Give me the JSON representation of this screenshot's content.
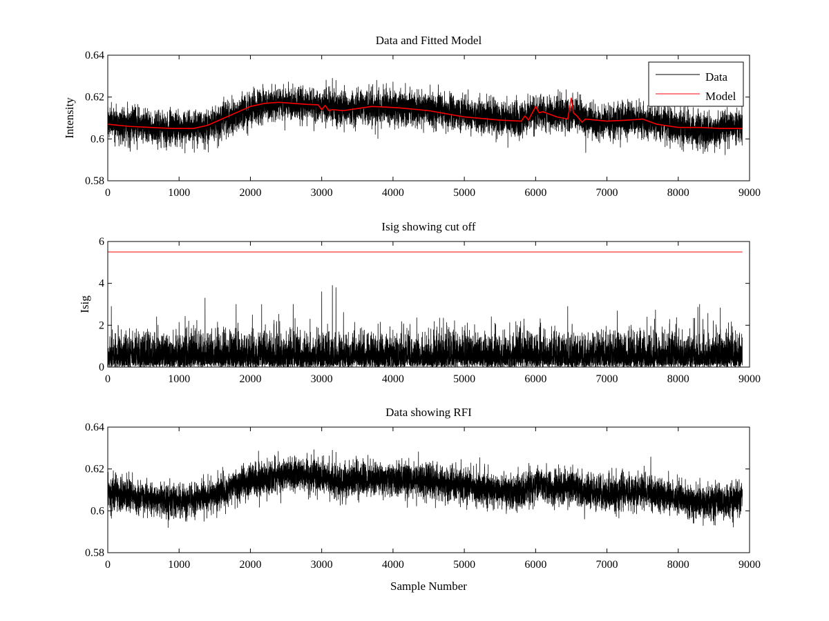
{
  "figure": {
    "background": "#ffffff",
    "xlabel": "Sample Number"
  },
  "chart_data": [
    {
      "type": "line",
      "title": "Data and Fitted Model",
      "xlabel": "",
      "ylabel": "Intensity",
      "xlim": [
        0,
        9000
      ],
      "ylim": [
        0.58,
        0.64
      ],
      "xticks": [
        0,
        1000,
        2000,
        3000,
        4000,
        5000,
        6000,
        7000,
        8000,
        9000
      ],
      "yticks": [
        0.58,
        0.6,
        0.62,
        0.64
      ],
      "ytick_labels": [
        "0.58",
        "0.6",
        "0.62",
        "0.64"
      ],
      "legend": {
        "position": "top-right",
        "entries": [
          "Data",
          "Model"
        ]
      },
      "series": [
        {
          "name": "Data",
          "color": "#000000",
          "kind": "noisy",
          "n_samples": 8900,
          "noise_sd": 0.004,
          "baseline": {
            "x": [
              0,
              200,
              500,
              800,
              1100,
              1300,
              1600,
              1900,
              2200,
              2400,
              2700,
              3000,
              3300,
              3700,
              4000,
              4500,
              5000,
              5500,
              5800,
              6000,
              6200,
              6500,
              6700,
              7000,
              7300,
              7500,
              7800,
              8100,
              8400,
              8700,
              8900
            ],
            "y": [
              0.608,
              0.607,
              0.606,
              0.605,
              0.605,
              0.606,
              0.609,
              0.613,
              0.616,
              0.617,
              0.617,
              0.616,
              0.614,
              0.615,
              0.615,
              0.614,
              0.612,
              0.61,
              0.609,
              0.613,
              0.611,
              0.612,
              0.609,
              0.608,
              0.609,
              0.609,
              0.607,
              0.605,
              0.604,
              0.605,
              0.606
            ]
          },
          "spikes": [
            {
              "x": 3150,
              "y": 0.629
            },
            {
              "x": 3200,
              "y": 0.628
            },
            {
              "x": 2350,
              "y": 0.626
            },
            {
              "x": 6520,
              "y": 0.622
            },
            {
              "x": 1350,
              "y": 0.595
            },
            {
              "x": 8350,
              "y": 0.593
            }
          ]
        },
        {
          "name": "Model",
          "color": "#ff0000",
          "kind": "line",
          "x": [
            0,
            300,
            600,
            900,
            1200,
            1400,
            1600,
            1800,
            2000,
            2200,
            2400,
            2600,
            2800,
            2950,
            3000,
            3050,
            3100,
            3150,
            3300,
            3500,
            3700,
            3900,
            4100,
            4500,
            5000,
            5500,
            5800,
            5850,
            5900,
            6000,
            6050,
            6100,
            6300,
            6450,
            6500,
            6530,
            6580,
            6650,
            6700,
            7000,
            7300,
            7500,
            7700,
            8000,
            8300,
            8600,
            8900
          ],
          "y": [
            0.607,
            0.606,
            0.6055,
            0.605,
            0.605,
            0.6065,
            0.6095,
            0.6125,
            0.6155,
            0.617,
            0.6175,
            0.617,
            0.6165,
            0.6163,
            0.614,
            0.616,
            0.6135,
            0.614,
            0.6135,
            0.6145,
            0.6155,
            0.6152,
            0.6148,
            0.6135,
            0.6105,
            0.609,
            0.6085,
            0.611,
            0.609,
            0.6155,
            0.6125,
            0.613,
            0.6105,
            0.6095,
            0.6195,
            0.6125,
            0.611,
            0.608,
            0.6095,
            0.6085,
            0.609,
            0.6095,
            0.607,
            0.6055,
            0.6055,
            0.605,
            0.605
          ]
        }
      ]
    },
    {
      "type": "line",
      "title": "Isig showing cut off",
      "xlabel": "",
      "ylabel": "Isig",
      "xlim": [
        0,
        9000
      ],
      "ylim": [
        0,
        6
      ],
      "xticks": [
        0,
        1000,
        2000,
        3000,
        4000,
        5000,
        6000,
        7000,
        8000,
        9000
      ],
      "yticks": [
        0,
        2,
        4,
        6
      ],
      "ytick_labels": [
        "0",
        "2",
        "4",
        "6"
      ],
      "series": [
        {
          "name": "Isig",
          "color": "#000000",
          "kind": "abs-noise",
          "n_samples": 8900,
          "noise_sd": 0.75,
          "spikes": [
            {
              "x": 3150,
              "y": 3.9
            },
            {
              "x": 3000,
              "y": 3.6
            },
            {
              "x": 3200,
              "y": 3.8
            },
            {
              "x": 2600,
              "y": 3.0
            },
            {
              "x": 6450,
              "y": 2.9
            },
            {
              "x": 8300,
              "y": 3.0
            },
            {
              "x": 1800,
              "y": 3.0
            },
            {
              "x": 50,
              "y": 2.9
            }
          ]
        },
        {
          "name": "Cut off",
          "color": "#ff0000",
          "kind": "line",
          "x": [
            0,
            8900
          ],
          "y": [
            5.5,
            5.5
          ]
        }
      ]
    },
    {
      "type": "line",
      "title": "Data showing RFI",
      "xlabel": "Sample Number",
      "ylabel": "",
      "xlim": [
        0,
        9000
      ],
      "ylim": [
        0.58,
        0.64
      ],
      "xticks": [
        0,
        1000,
        2000,
        3000,
        4000,
        5000,
        6000,
        7000,
        8000,
        9000
      ],
      "yticks": [
        0.58,
        0.6,
        0.62,
        0.64
      ],
      "ytick_labels": [
        "0.58",
        "0.6",
        "0.62",
        "0.64"
      ],
      "series": [
        {
          "name": "Data",
          "color": "#000000",
          "kind": "noisy",
          "n_samples": 8900,
          "noise_sd": 0.004,
          "baseline": {
            "x": [
              0,
              200,
              500,
              800,
              1100,
              1300,
              1600,
              1900,
              2200,
              2400,
              2700,
              3000,
              3300,
              3700,
              4000,
              4500,
              5000,
              5500,
              5800,
              6000,
              6200,
              6500,
              6700,
              7000,
              7300,
              7500,
              7800,
              8100,
              8400,
              8700,
              8900
            ],
            "y": [
              0.608,
              0.607,
              0.606,
              0.605,
              0.605,
              0.606,
              0.609,
              0.613,
              0.616,
              0.617,
              0.617,
              0.616,
              0.614,
              0.615,
              0.615,
              0.614,
              0.612,
              0.61,
              0.609,
              0.613,
              0.611,
              0.612,
              0.609,
              0.608,
              0.609,
              0.609,
              0.607,
              0.605,
              0.604,
              0.605,
              0.606
            ]
          },
          "spikes": [
            {
              "x": 3150,
              "y": 0.629
            },
            {
              "x": 3200,
              "y": 0.628
            },
            {
              "x": 2350,
              "y": 0.626
            },
            {
              "x": 6520,
              "y": 0.622
            },
            {
              "x": 1350,
              "y": 0.595
            },
            {
              "x": 8350,
              "y": 0.593
            }
          ]
        }
      ]
    }
  ]
}
